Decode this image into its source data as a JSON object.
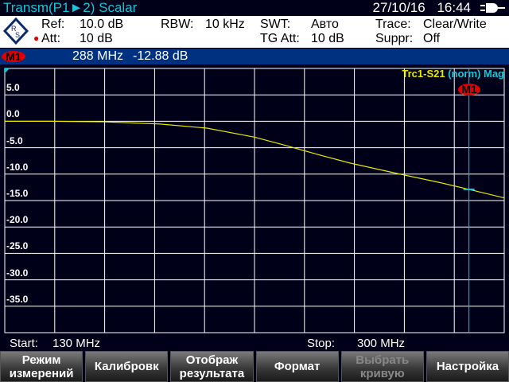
{
  "header": {
    "title": "Transm(P1►2) Scalar",
    "date": "27/10/16",
    "time": "16:44",
    "power_icon": "plug-icon"
  },
  "info": {
    "ref_label": "Ref:",
    "ref_value": "10.0 dB",
    "att_label": "Att:",
    "att_value": "10 dB",
    "rbw_label": "RBW:",
    "rbw_value": "10 kHz",
    "swt_label": "SWT:",
    "swt_value": "Авто",
    "tgatt_label": "TG Att:",
    "tgatt_value": "10 dB",
    "trace_label": "Trace:",
    "trace_value": "Clear/Write",
    "suppr_label": "Suppr:",
    "suppr_value": "Off"
  },
  "marker": {
    "label": "M1",
    "freq": "288 MHz",
    "value": "-12.88 dB",
    "freq_mhz": 288,
    "level_db": -12.88
  },
  "legend": {
    "trace": "Trc1-S21",
    "norm": "(norm)",
    "format": "Mag"
  },
  "colors": {
    "trace": "#e8e800",
    "marker_line": "#10c8d8",
    "grid": "#ffffff",
    "background": "#000018",
    "marker_bar": "#003080"
  },
  "chart_data": {
    "type": "line",
    "xlim": [
      130,
      300
    ],
    "ylim": [
      -40,
      10
    ],
    "grid": true,
    "y_ticks": [
      "5.0",
      "0.0",
      "-5.0",
      "-10.0",
      "-15.0",
      "-20.0",
      "-25.0",
      "-30.0",
      "-35.0"
    ],
    "x": [
      130,
      146,
      163.6,
      182.5,
      198.8,
      215,
      225.8,
      236.6,
      247.5,
      263.7,
      277.3,
      288,
      300
    ],
    "y": [
      0,
      0,
      -0.1,
      -0.5,
      -1.3,
      -3.0,
      -4.6,
      -6.3,
      -7.9,
      -9.9,
      -11.5,
      -12.88,
      -14.5
    ]
  },
  "footer": {
    "start_label": "Start:",
    "start_value": "130 MHz",
    "stop_label": "Stop:",
    "stop_value": "300 MHz"
  },
  "softkeys": [
    {
      "label": "Режим\nизмерений",
      "enabled": true
    },
    {
      "label": "Калибровк",
      "enabled": true
    },
    {
      "label": "Отображ\nрезультата",
      "enabled": true
    },
    {
      "label": "Формат",
      "enabled": true
    },
    {
      "label": "Выбрать\nкривую",
      "enabled": false
    },
    {
      "label": "Настройка",
      "enabled": true
    }
  ]
}
